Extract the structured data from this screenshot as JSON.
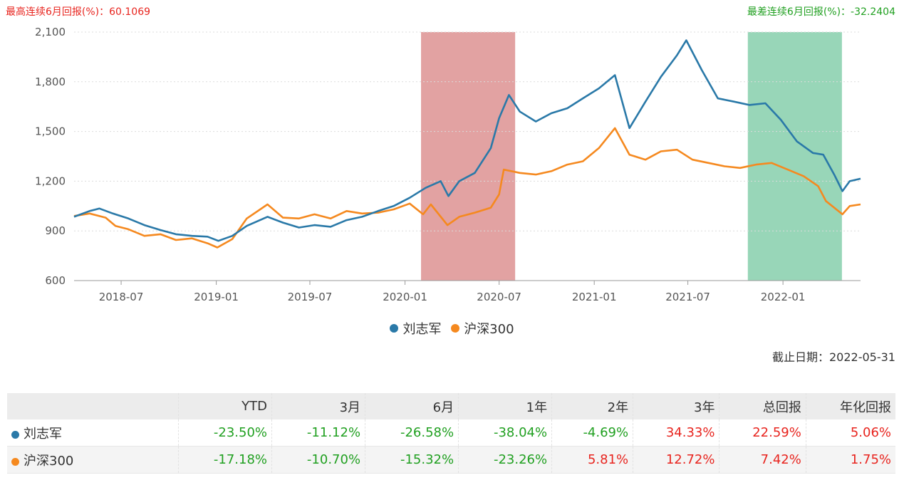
{
  "header": {
    "best_label": "最高连续6月回报(%)：60.1069",
    "worst_label": "最差连续6月回报(%)：-32.2404"
  },
  "colors": {
    "fund": "#2a79a8",
    "index": "#f5891f",
    "best_band": "#d67a7a",
    "worst_band": "#6cc59a",
    "positive": "#e8251f",
    "negative": "#21a021"
  },
  "chart_data": {
    "type": "line",
    "title": "",
    "xlabel": "",
    "ylabel": "",
    "ylim": [
      600,
      2100
    ],
    "yticks": [
      600,
      900,
      1200,
      1500,
      1800,
      2100
    ],
    "ytick_labels": [
      "600",
      "900",
      "1,200",
      "1,500",
      "1,800",
      "2,100"
    ],
    "xlim": [
      "2018-04-01",
      "2022-05-31"
    ],
    "xticks": [
      "2018-07",
      "2019-01",
      "2019-07",
      "2020-01",
      "2020-07",
      "2021-01",
      "2021-07",
      "2022-01"
    ],
    "grid": true,
    "legend_position": "bottom",
    "bands": [
      {
        "label": "最高连续6月回报",
        "start": "2020-02-01",
        "end": "2020-08-01"
      },
      {
        "label": "最差连续6月回报",
        "start": "2021-10-25",
        "end": "2022-04-25"
      }
    ],
    "series": [
      {
        "name": "刘志军",
        "points": [
          [
            "2018-04-01",
            985
          ],
          [
            "2018-05-01",
            1020
          ],
          [
            "2018-05-20",
            1035
          ],
          [
            "2018-06-15",
            1005
          ],
          [
            "2018-07-15",
            975
          ],
          [
            "2018-08-15",
            935
          ],
          [
            "2018-09-15",
            905
          ],
          [
            "2018-10-15",
            880
          ],
          [
            "2018-11-15",
            870
          ],
          [
            "2018-12-15",
            865
          ],
          [
            "2019-01-05",
            840
          ],
          [
            "2019-02-01",
            870
          ],
          [
            "2019-03-01",
            930
          ],
          [
            "2019-04-10",
            985
          ],
          [
            "2019-05-10",
            950
          ],
          [
            "2019-06-10",
            920
          ],
          [
            "2019-07-10",
            935
          ],
          [
            "2019-08-10",
            925
          ],
          [
            "2019-09-10",
            965
          ],
          [
            "2019-10-10",
            985
          ],
          [
            "2019-11-10",
            1020
          ],
          [
            "2019-12-10",
            1050
          ],
          [
            "2020-01-10",
            1100
          ],
          [
            "2020-02-10",
            1160
          ],
          [
            "2020-03-10",
            1200
          ],
          [
            "2020-03-25",
            1110
          ],
          [
            "2020-04-15",
            1200
          ],
          [
            "2020-05-15",
            1250
          ],
          [
            "2020-06-15",
            1400
          ],
          [
            "2020-07-01",
            1580
          ],
          [
            "2020-07-20",
            1720
          ],
          [
            "2020-08-10",
            1620
          ],
          [
            "2020-09-10",
            1560
          ],
          [
            "2020-10-10",
            1610
          ],
          [
            "2020-11-10",
            1640
          ],
          [
            "2020-12-10",
            1700
          ],
          [
            "2021-01-10",
            1760
          ],
          [
            "2021-02-10",
            1840
          ],
          [
            "2021-03-10",
            1520
          ],
          [
            "2021-04-10",
            1680
          ],
          [
            "2021-05-10",
            1830
          ],
          [
            "2021-06-10",
            1960
          ],
          [
            "2021-06-28",
            2050
          ],
          [
            "2021-07-28",
            1870
          ],
          [
            "2021-08-28",
            1700
          ],
          [
            "2021-09-28",
            1680
          ],
          [
            "2021-10-28",
            1660
          ],
          [
            "2021-11-28",
            1670
          ],
          [
            "2021-12-28",
            1570
          ],
          [
            "2022-01-28",
            1440
          ],
          [
            "2022-02-28",
            1370
          ],
          [
            "2022-03-20",
            1360
          ],
          [
            "2022-04-10",
            1240
          ],
          [
            "2022-04-26",
            1140
          ],
          [
            "2022-05-10",
            1200
          ],
          [
            "2022-05-31",
            1215
          ]
        ]
      },
      {
        "name": "沪深300",
        "points": [
          [
            "2018-04-01",
            990
          ],
          [
            "2018-05-01",
            1005
          ],
          [
            "2018-06-01",
            980
          ],
          [
            "2018-06-20",
            930
          ],
          [
            "2018-07-15",
            910
          ],
          [
            "2018-08-15",
            870
          ],
          [
            "2018-09-15",
            880
          ],
          [
            "2018-10-15",
            845
          ],
          [
            "2018-11-15",
            855
          ],
          [
            "2018-12-15",
            825
          ],
          [
            "2019-01-03",
            800
          ],
          [
            "2019-02-01",
            850
          ],
          [
            "2019-03-01",
            975
          ],
          [
            "2019-04-10",
            1060
          ],
          [
            "2019-05-10",
            980
          ],
          [
            "2019-06-10",
            975
          ],
          [
            "2019-07-10",
            1000
          ],
          [
            "2019-08-10",
            975
          ],
          [
            "2019-09-10",
            1020
          ],
          [
            "2019-10-10",
            1005
          ],
          [
            "2019-11-10",
            1010
          ],
          [
            "2019-12-10",
            1030
          ],
          [
            "2020-01-10",
            1065
          ],
          [
            "2020-02-05",
            1000
          ],
          [
            "2020-02-20",
            1060
          ],
          [
            "2020-03-23",
            935
          ],
          [
            "2020-04-15",
            985
          ],
          [
            "2020-05-15",
            1010
          ],
          [
            "2020-06-15",
            1040
          ],
          [
            "2020-07-01",
            1120
          ],
          [
            "2020-07-10",
            1270
          ],
          [
            "2020-08-10",
            1250
          ],
          [
            "2020-09-10",
            1240
          ],
          [
            "2020-10-10",
            1260
          ],
          [
            "2020-11-10",
            1300
          ],
          [
            "2020-12-10",
            1320
          ],
          [
            "2021-01-10",
            1400
          ],
          [
            "2021-02-10",
            1520
          ],
          [
            "2021-03-10",
            1360
          ],
          [
            "2021-04-10",
            1330
          ],
          [
            "2021-05-10",
            1380
          ],
          [
            "2021-06-10",
            1390
          ],
          [
            "2021-07-10",
            1330
          ],
          [
            "2021-08-10",
            1310
          ],
          [
            "2021-09-10",
            1290
          ],
          [
            "2021-10-10",
            1280
          ],
          [
            "2021-11-10",
            1300
          ],
          [
            "2021-12-10",
            1310
          ],
          [
            "2022-01-10",
            1270
          ],
          [
            "2022-02-10",
            1230
          ],
          [
            "2022-03-10",
            1170
          ],
          [
            "2022-03-25",
            1080
          ],
          [
            "2022-04-26",
            1000
          ],
          [
            "2022-05-10",
            1050
          ],
          [
            "2022-05-31",
            1060
          ]
        ]
      }
    ]
  },
  "legend": [
    {
      "name": "刘志军"
    },
    {
      "name": "沪深300"
    }
  ],
  "asof": "截止日期：2022-05-31",
  "table": {
    "headers": [
      "",
      "YTD",
      "3月",
      "6月",
      "1年",
      "2年",
      "3年",
      "总回报",
      "年化回报"
    ],
    "rows": [
      {
        "name": "刘志军",
        "values": [
          "-23.50%",
          "-11.12%",
          "-26.58%",
          "-38.04%",
          "-4.69%",
          "34.33%",
          "22.59%",
          "5.06%"
        ]
      },
      {
        "name": "沪深300",
        "values": [
          "-17.18%",
          "-10.70%",
          "-15.32%",
          "-23.26%",
          "5.81%",
          "12.72%",
          "7.42%",
          "1.75%"
        ]
      }
    ]
  }
}
